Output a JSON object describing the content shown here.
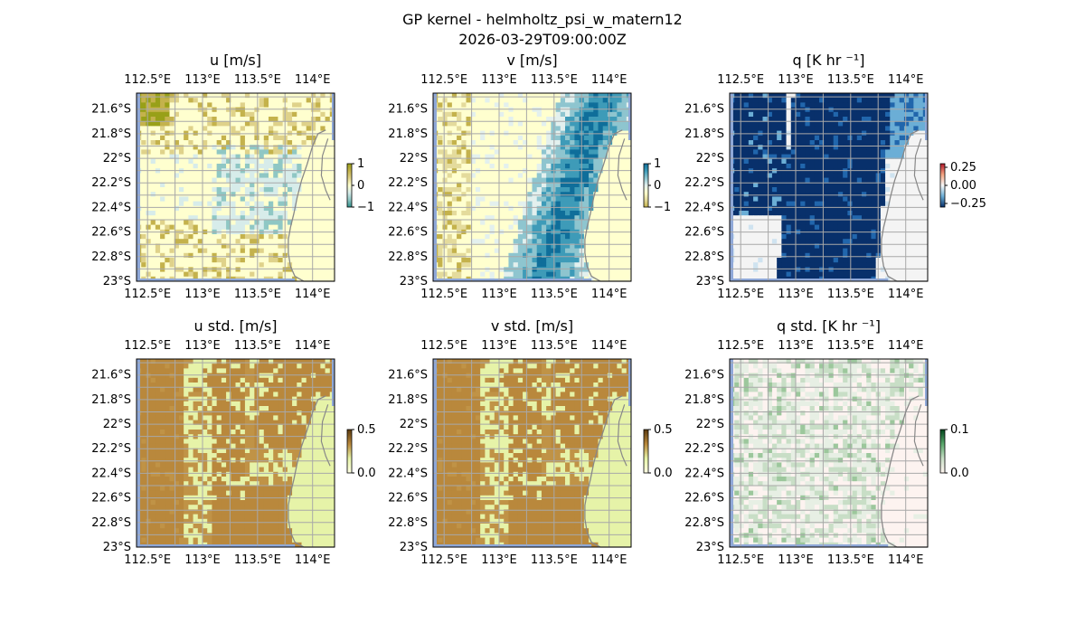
{
  "figure": {
    "title": "GP kernel - helmholtz_psi_w_matern12",
    "subtitle": "2026-03-29T09:00:00Z"
  },
  "chart_data": [
    {
      "type": "heatmap",
      "title": "u [m/s]",
      "colormap": "brown-white-teal (diverging)",
      "clim": [
        -1,
        1
      ],
      "colorbar_ticks": [
        "1",
        "0",
        "−1"
      ],
      "colorbar_ticks_values": [
        1,
        0,
        -1
      ],
      "palette": [
        "#2f8f8a",
        "#8fc7c4",
        "#d7ecea",
        "#ffffcf",
        "#dfd28a",
        "#c4b24c",
        "#98a018"
      ],
      "pattern": "u",
      "xticks": [
        "112.5°E",
        "113°E",
        "113.5°E",
        "114°E"
      ],
      "yticks": [
        "21.6°S",
        "21.8°S",
        "22°S",
        "22.2°S",
        "22.4°S",
        "22.6°S",
        "22.8°S",
        "23°S"
      ],
      "lon_range": [
        112.4,
        114.2
      ],
      "lat_range": [
        -23.0,
        -21.47
      ],
      "grid": true,
      "coastline": true
    },
    {
      "type": "heatmap",
      "title": "v [m/s]",
      "colormap": "brown-white-teal (diverging)",
      "clim": [
        -1,
        1
      ],
      "colorbar_ticks": [
        "1",
        "0",
        "−1"
      ],
      "colorbar_ticks_values": [
        1,
        0,
        -1
      ],
      "palette": [
        "#0f6e9a",
        "#3e9bb8",
        "#8ec5cf",
        "#e3f0ee",
        "#ffffcf",
        "#e4db9c",
        "#c4b24c"
      ],
      "pattern": "v",
      "xticks": [
        "112.5°E",
        "113°E",
        "113.5°E",
        "114°E"
      ],
      "yticks": [
        "21.6°S",
        "21.8°S",
        "22°S",
        "22.2°S",
        "22.4°S",
        "22.6°S",
        "22.8°S",
        "23°S"
      ],
      "lon_range": [
        112.4,
        114.2
      ],
      "lat_range": [
        -23.0,
        -21.47
      ],
      "grid": true,
      "coastline": true
    },
    {
      "type": "heatmap",
      "title": "q [K hr ⁻¹]",
      "colormap": "blue-white-red (diverging)",
      "clim": [
        -0.3,
        0.3
      ],
      "colorbar_ticks": [
        "0.25",
        "0.00",
        "−0.25"
      ],
      "colorbar_ticks_values": [
        0.25,
        0.0,
        -0.25
      ],
      "palette": [
        "#08306b",
        "#2166ac",
        "#6baed6",
        "#cfe3f0",
        "#f4f4f4"
      ],
      "pattern": "q",
      "xticks": [
        "112.5°E",
        "113°E",
        "113.5°E",
        "114°E"
      ],
      "yticks": [
        "21.6°S",
        "21.8°S",
        "22°S",
        "22.2°S",
        "22.4°S",
        "22.6°S",
        "22.8°S",
        "23°S"
      ],
      "lon_range": [
        112.4,
        114.2
      ],
      "lat_range": [
        -23.0,
        -21.47
      ],
      "grid": true,
      "coastline": true
    },
    {
      "type": "heatmap",
      "title": "u std. [m/s]",
      "colormap": "light green to brown (sequential)",
      "clim": [
        0.0,
        0.5
      ],
      "colorbar_ticks": [
        "0.5",
        "0.0"
      ],
      "colorbar_ticks_values": [
        0.5,
        0.0
      ],
      "palette": [
        "#b9883c",
        "#c09346",
        "#e6f3a8"
      ],
      "pattern": "std",
      "xticks": [
        "112.5°E",
        "113°E",
        "113.5°E",
        "114°E"
      ],
      "yticks": [
        "21.6°S",
        "21.8°S",
        "22°S",
        "22.2°S",
        "22.4°S",
        "22.6°S",
        "22.8°S",
        "23°S"
      ],
      "lon_range": [
        112.4,
        114.2
      ],
      "lat_range": [
        -23.0,
        -21.47
      ],
      "grid": true,
      "coastline": true
    },
    {
      "type": "heatmap",
      "title": "v std. [m/s]",
      "colormap": "light green to brown (sequential)",
      "clim": [
        0.0,
        0.5
      ],
      "colorbar_ticks": [
        "0.5",
        "0.0"
      ],
      "colorbar_ticks_values": [
        0.5,
        0.0
      ],
      "palette": [
        "#b9883c",
        "#c09346",
        "#e6f3a8"
      ],
      "pattern": "std",
      "xticks": [
        "112.5°E",
        "113°E",
        "113.5°E",
        "114°E"
      ],
      "yticks": [
        "21.6°S",
        "21.8°S",
        "22°S",
        "22.2°S",
        "22.4°S",
        "22.6°S",
        "22.8°S",
        "23°S"
      ],
      "lon_range": [
        112.4,
        114.2
      ],
      "lat_range": [
        -23.0,
        -21.47
      ],
      "grid": true,
      "coastline": true
    },
    {
      "type": "heatmap",
      "title": "q std. [K hr ⁻¹]",
      "colormap": "pale pink to green (sequential)",
      "clim": [
        0.0,
        0.1
      ],
      "colorbar_ticks": [
        "0.1",
        "0.0"
      ],
      "colorbar_ticks_values": [
        0.1,
        0.0
      ],
      "palette": [
        "#fdf3f0",
        "#e7efe4",
        "#c8dec6",
        "#9cc79c"
      ],
      "pattern": "qstd",
      "xticks": [
        "112.5°E",
        "113°E",
        "113.5°E",
        "114°E"
      ],
      "yticks": [
        "21.6°S",
        "21.8°S",
        "22°S",
        "22.2°S",
        "22.4°S",
        "22.6°S",
        "22.8°S",
        "23°S"
      ],
      "lon_range": [
        112.4,
        114.2
      ],
      "lat_range": [
        -23.0,
        -21.47
      ],
      "grid": true,
      "coastline": true
    }
  ],
  "colors": {
    "ocean_edge": "#8fa8d8",
    "coastline": "#888888",
    "grid": "#a8a8a8"
  }
}
